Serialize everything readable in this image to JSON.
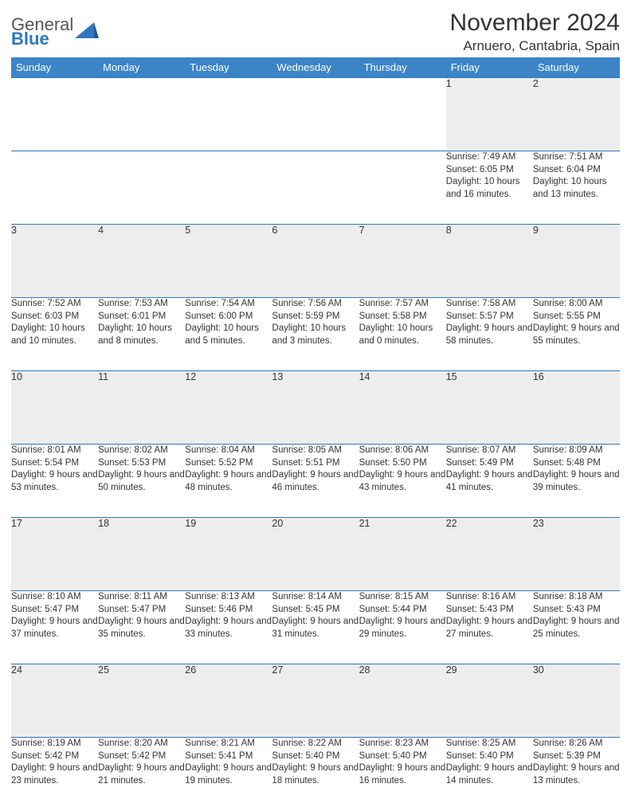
{
  "header": {
    "logo_line1": "General",
    "logo_line2": "Blue",
    "month_title": "November 2024",
    "location": "Arnuero, Cantabria, Spain"
  },
  "colors": {
    "header_bg": "#3b85c6",
    "header_text": "#ffffff",
    "daynum_bg": "#ededed",
    "border": "#2f77bb",
    "logo_blue": "#2f77bb",
    "text": "#333333",
    "page_bg": "#ffffff"
  },
  "day_headers": [
    "Sunday",
    "Monday",
    "Tuesday",
    "Wednesday",
    "Thursday",
    "Friday",
    "Saturday"
  ],
  "weeks": [
    [
      {
        "n": "",
        "sr": "",
        "ss": "",
        "dl": ""
      },
      {
        "n": "",
        "sr": "",
        "ss": "",
        "dl": ""
      },
      {
        "n": "",
        "sr": "",
        "ss": "",
        "dl": ""
      },
      {
        "n": "",
        "sr": "",
        "ss": "",
        "dl": ""
      },
      {
        "n": "",
        "sr": "",
        "ss": "",
        "dl": ""
      },
      {
        "n": "1",
        "sr": "Sunrise: 7:49 AM",
        "ss": "Sunset: 6:05 PM",
        "dl": "Daylight: 10 hours and 16 minutes."
      },
      {
        "n": "2",
        "sr": "Sunrise: 7:51 AM",
        "ss": "Sunset: 6:04 PM",
        "dl": "Daylight: 10 hours and 13 minutes."
      }
    ],
    [
      {
        "n": "3",
        "sr": "Sunrise: 7:52 AM",
        "ss": "Sunset: 6:03 PM",
        "dl": "Daylight: 10 hours and 10 minutes."
      },
      {
        "n": "4",
        "sr": "Sunrise: 7:53 AM",
        "ss": "Sunset: 6:01 PM",
        "dl": "Daylight: 10 hours and 8 minutes."
      },
      {
        "n": "5",
        "sr": "Sunrise: 7:54 AM",
        "ss": "Sunset: 6:00 PM",
        "dl": "Daylight: 10 hours and 5 minutes."
      },
      {
        "n": "6",
        "sr": "Sunrise: 7:56 AM",
        "ss": "Sunset: 5:59 PM",
        "dl": "Daylight: 10 hours and 3 minutes."
      },
      {
        "n": "7",
        "sr": "Sunrise: 7:57 AM",
        "ss": "Sunset: 5:58 PM",
        "dl": "Daylight: 10 hours and 0 minutes."
      },
      {
        "n": "8",
        "sr": "Sunrise: 7:58 AM",
        "ss": "Sunset: 5:57 PM",
        "dl": "Daylight: 9 hours and 58 minutes."
      },
      {
        "n": "9",
        "sr": "Sunrise: 8:00 AM",
        "ss": "Sunset: 5:55 PM",
        "dl": "Daylight: 9 hours and 55 minutes."
      }
    ],
    [
      {
        "n": "10",
        "sr": "Sunrise: 8:01 AM",
        "ss": "Sunset: 5:54 PM",
        "dl": "Daylight: 9 hours and 53 minutes."
      },
      {
        "n": "11",
        "sr": "Sunrise: 8:02 AM",
        "ss": "Sunset: 5:53 PM",
        "dl": "Daylight: 9 hours and 50 minutes."
      },
      {
        "n": "12",
        "sr": "Sunrise: 8:04 AM",
        "ss": "Sunset: 5:52 PM",
        "dl": "Daylight: 9 hours and 48 minutes."
      },
      {
        "n": "13",
        "sr": "Sunrise: 8:05 AM",
        "ss": "Sunset: 5:51 PM",
        "dl": "Daylight: 9 hours and 46 minutes."
      },
      {
        "n": "14",
        "sr": "Sunrise: 8:06 AM",
        "ss": "Sunset: 5:50 PM",
        "dl": "Daylight: 9 hours and 43 minutes."
      },
      {
        "n": "15",
        "sr": "Sunrise: 8:07 AM",
        "ss": "Sunset: 5:49 PM",
        "dl": "Daylight: 9 hours and 41 minutes."
      },
      {
        "n": "16",
        "sr": "Sunrise: 8:09 AM",
        "ss": "Sunset: 5:48 PM",
        "dl": "Daylight: 9 hours and 39 minutes."
      }
    ],
    [
      {
        "n": "17",
        "sr": "Sunrise: 8:10 AM",
        "ss": "Sunset: 5:47 PM",
        "dl": "Daylight: 9 hours and 37 minutes."
      },
      {
        "n": "18",
        "sr": "Sunrise: 8:11 AM",
        "ss": "Sunset: 5:47 PM",
        "dl": "Daylight: 9 hours and 35 minutes."
      },
      {
        "n": "19",
        "sr": "Sunrise: 8:13 AM",
        "ss": "Sunset: 5:46 PM",
        "dl": "Daylight: 9 hours and 33 minutes."
      },
      {
        "n": "20",
        "sr": "Sunrise: 8:14 AM",
        "ss": "Sunset: 5:45 PM",
        "dl": "Daylight: 9 hours and 31 minutes."
      },
      {
        "n": "21",
        "sr": "Sunrise: 8:15 AM",
        "ss": "Sunset: 5:44 PM",
        "dl": "Daylight: 9 hours and 29 minutes."
      },
      {
        "n": "22",
        "sr": "Sunrise: 8:16 AM",
        "ss": "Sunset: 5:43 PM",
        "dl": "Daylight: 9 hours and 27 minutes."
      },
      {
        "n": "23",
        "sr": "Sunrise: 8:18 AM",
        "ss": "Sunset: 5:43 PM",
        "dl": "Daylight: 9 hours and 25 minutes."
      }
    ],
    [
      {
        "n": "24",
        "sr": "Sunrise: 8:19 AM",
        "ss": "Sunset: 5:42 PM",
        "dl": "Daylight: 9 hours and 23 minutes."
      },
      {
        "n": "25",
        "sr": "Sunrise: 8:20 AM",
        "ss": "Sunset: 5:42 PM",
        "dl": "Daylight: 9 hours and 21 minutes."
      },
      {
        "n": "26",
        "sr": "Sunrise: 8:21 AM",
        "ss": "Sunset: 5:41 PM",
        "dl": "Daylight: 9 hours and 19 minutes."
      },
      {
        "n": "27",
        "sr": "Sunrise: 8:22 AM",
        "ss": "Sunset: 5:40 PM",
        "dl": "Daylight: 9 hours and 18 minutes."
      },
      {
        "n": "28",
        "sr": "Sunrise: 8:23 AM",
        "ss": "Sunset: 5:40 PM",
        "dl": "Daylight: 9 hours and 16 minutes."
      },
      {
        "n": "29",
        "sr": "Sunrise: 8:25 AM",
        "ss": "Sunset: 5:40 PM",
        "dl": "Daylight: 9 hours and 14 minutes."
      },
      {
        "n": "30",
        "sr": "Sunrise: 8:26 AM",
        "ss": "Sunset: 5:39 PM",
        "dl": "Daylight: 9 hours and 13 minutes."
      }
    ]
  ]
}
